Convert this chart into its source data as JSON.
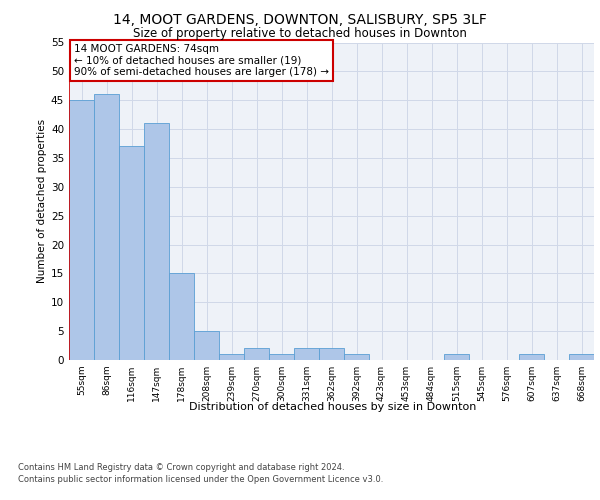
{
  "title": "14, MOOT GARDENS, DOWNTON, SALISBURY, SP5 3LF",
  "subtitle": "Size of property relative to detached houses in Downton",
  "xlabel": "Distribution of detached houses by size in Downton",
  "ylabel": "Number of detached properties",
  "categories": [
    "55sqm",
    "86sqm",
    "116sqm",
    "147sqm",
    "178sqm",
    "208sqm",
    "239sqm",
    "270sqm",
    "300sqm",
    "331sqm",
    "362sqm",
    "392sqm",
    "423sqm",
    "453sqm",
    "484sqm",
    "515sqm",
    "545sqm",
    "576sqm",
    "607sqm",
    "637sqm",
    "668sqm"
  ],
  "values": [
    45,
    46,
    37,
    41,
    15,
    5,
    1,
    2,
    1,
    2,
    2,
    1,
    0,
    0,
    0,
    1,
    0,
    0,
    1,
    0,
    1
  ],
  "bar_color": "#aec6e8",
  "bar_edge_color": "#5a9fd4",
  "annotation_text": "14 MOOT GARDENS: 74sqm\n← 10% of detached houses are smaller (19)\n90% of semi-detached houses are larger (178) →",
  "annotation_box_color": "#ffffff",
  "annotation_box_edge_color": "#cc0000",
  "grid_color": "#d0d8e8",
  "background_color": "#eef2f8",
  "ylim": [
    0,
    55
  ],
  "yticks": [
    0,
    5,
    10,
    15,
    20,
    25,
    30,
    35,
    40,
    45,
    50,
    55
  ],
  "footer_line1": "Contains HM Land Registry data © Crown copyright and database right 2024.",
  "footer_line2": "Contains public sector information licensed under the Open Government Licence v3.0."
}
